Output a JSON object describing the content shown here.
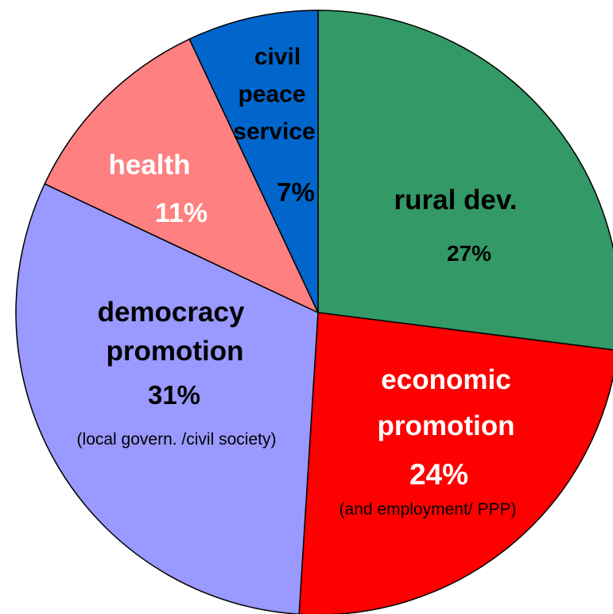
{
  "chart_data": {
    "type": "pie",
    "title": "",
    "slices": [
      {
        "id": "rural",
        "label_lines": [
          "rural dev."
        ],
        "percent_label": "27%",
        "value": 27,
        "note": "",
        "color": "#339966",
        "text_color": "#000000"
      },
      {
        "id": "economic",
        "label_lines": [
          "economic",
          "promotion"
        ],
        "percent_label": "24%",
        "value": 24,
        "note": "(and employment/ PPP)",
        "color": "#ff0000",
        "text_color": "#ffffff"
      },
      {
        "id": "democracy",
        "label_lines": [
          "democracy",
          "promotion"
        ],
        "percent_label": "31%",
        "value": 31,
        "note": "(local govern. /civil society)",
        "color": "#9999ff",
        "text_color": "#000000"
      },
      {
        "id": "health",
        "label_lines": [
          "health"
        ],
        "percent_label": "11%",
        "value": 11,
        "note": "",
        "color": "#ff8080",
        "text_color": "#ffffff"
      },
      {
        "id": "civil",
        "label_lines": [
          "civil",
          "peace",
          "service"
        ],
        "percent_label": "7%",
        "value": 7,
        "note": "",
        "color": "#0066cc",
        "text_color": "#000000"
      }
    ]
  }
}
